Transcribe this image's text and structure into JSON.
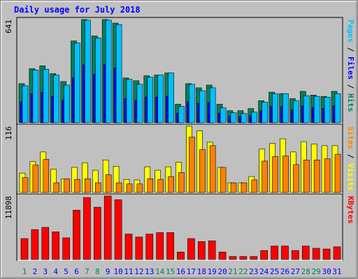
{
  "title": "Daily usage for July 2018",
  "chart_data": [
    {
      "type": "bar",
      "ylim": [
        0,
        641
      ],
      "yticks": [
        641
      ],
      "legend_separator": " / ",
      "series": [
        {
          "name": "Hits",
          "color": "#00805c",
          "values": [
            243,
            336,
            354,
            305,
            256,
            508,
            641,
            539,
            641,
            619,
            278,
            261,
            292,
            296,
            309,
            115,
            243,
            217,
            234,
            115,
            75,
            75,
            88,
            137,
            190,
            181,
            150,
            195,
            172,
            164,
            195
          ]
        },
        {
          "name": "Files",
          "color": "#0000ff",
          "values": [
            130,
            180,
            190,
            165,
            140,
            280,
            360,
            300,
            360,
            340,
            150,
            140,
            160,
            160,
            165,
            60,
            130,
            120,
            125,
            60,
            40,
            40,
            45,
            75,
            100,
            100,
            80,
            105,
            95,
            90,
            105
          ]
        },
        {
          "name": "Pages",
          "color": "#00c0ff",
          "values": [
            230,
            327,
            332,
            296,
            234,
            495,
            637,
            526,
            637,
            610,
            270,
            239,
            283,
            296,
            309,
            102,
            239,
            199,
            217,
            93,
            62,
            57,
            66,
            128,
            181,
            181,
            137,
            168,
            164,
            159,
            181
          ]
        }
      ]
    },
    {
      "type": "bar",
      "ylim": [
        0,
        116
      ],
      "yticks": [
        116
      ],
      "legend_separator": " / ",
      "series": [
        {
          "name": "Visits",
          "color": "#ffff00",
          "values": [
            34,
            54,
            71,
            41,
            24,
            44,
            52,
            39,
            57,
            46,
            23,
            22,
            45,
            39,
            45,
            53,
            116,
            108,
            88,
            44,
            17,
            17,
            28,
            76,
            86,
            94,
            71,
            89,
            85,
            82,
            82
          ]
        },
        {
          "name": "Sites",
          "color": "#ff8000",
          "values": [
            26,
            48,
            58,
            17,
            24,
            23,
            24,
            17,
            31,
            17,
            15,
            15,
            24,
            23,
            28,
            35,
            97,
            75,
            82,
            44,
            17,
            17,
            22,
            55,
            63,
            64,
            49,
            57,
            57,
            59,
            67
          ]
        }
      ]
    },
    {
      "type": "bar",
      "ylim": [
        0,
        11898
      ],
      "yticks": [
        11898
      ],
      "categories": [
        "1",
        "2",
        "3",
        "4",
        "5",
        "6",
        "7",
        "8",
        "9",
        "10",
        "11",
        "12",
        "13",
        "14",
        "15",
        "16",
        "17",
        "18",
        "19",
        "20",
        "21",
        "22",
        "23",
        "24",
        "25",
        "26",
        "27",
        "28",
        "29",
        "30",
        "31"
      ],
      "category_colors": [
        "#00805c",
        "#0000ff",
        "#0000ff",
        "#0000ff",
        "#0000ff",
        "#0000ff",
        "#00805c",
        "#00805c",
        "#0000ff",
        "#0000ff",
        "#0000ff",
        "#0000ff",
        "#0000ff",
        "#00805c",
        "#00805c",
        "#0000ff",
        "#0000ff",
        "#0000ff",
        "#0000ff",
        "#0000ff",
        "#00805c",
        "#00805c",
        "#0000ff",
        "#0000ff",
        "#0000ff",
        "#0000ff",
        "#0000ff",
        "#00805c",
        "#00805c",
        "#0000ff",
        "#0000ff"
      ],
      "series": [
        {
          "name": "KBytes",
          "color": "#ff0000",
          "values": [
            3919,
            5599,
            6019,
            5179,
            4059,
            9238,
            11618,
            9798,
            11898,
            11198,
            4759,
            4199,
            4759,
            5039,
            5039,
            1400,
            3919,
            3359,
            3499,
            1400,
            560,
            560,
            560,
            1680,
            2520,
            2520,
            1680,
            2520,
            2100,
            1960,
            2380
          ]
        }
      ]
    }
  ]
}
